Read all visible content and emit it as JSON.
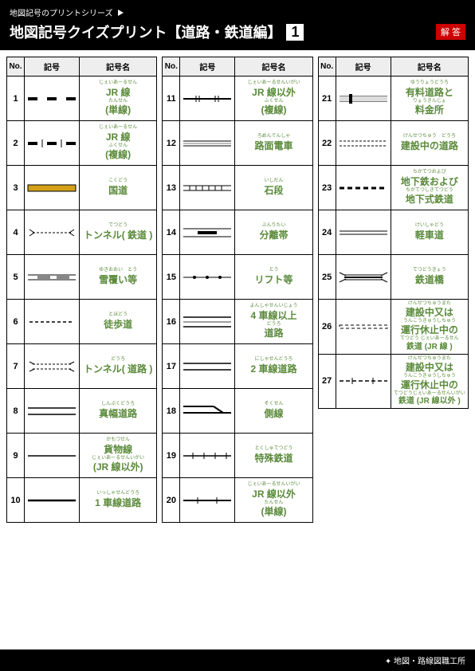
{
  "header": {
    "series": "地図記号のプリントシリーズ",
    "title": "地図記号クイズプリント【道路・鉄道編】",
    "number": "1",
    "answer_label": "解 答"
  },
  "columns": {
    "no": "No.",
    "symbol": "記号",
    "name": "記号名"
  },
  "footer": "地図・路線図職工所",
  "colors": {
    "accent": "#5a8a3a",
    "kokudo": "#d4a017"
  },
  "items": [
    {
      "no": 1,
      "svg": "jr1",
      "ruby1": "じぇいあーるせん",
      "main": "JR 線",
      "ruby2": "たんせん",
      "sub": "(単線)"
    },
    {
      "no": 2,
      "svg": "jr2",
      "ruby1": "じぇいあーるせん",
      "main": "JR 線",
      "ruby2": "ふくせん",
      "sub": "(複線)"
    },
    {
      "no": 3,
      "svg": "kokudo",
      "ruby1": "こくどう",
      "main": "国道"
    },
    {
      "no": 4,
      "svg": "tun-rail",
      "ruby1": "てつどう",
      "main": "トンネル",
      "sub": "( 鉄道 )"
    },
    {
      "no": 5,
      "svg": "yuki",
      "ruby1": "ゆきおおい　とう",
      "main": "雪覆い等"
    },
    {
      "no": 6,
      "svg": "toho",
      "ruby1": "とほどう",
      "main": "徒歩道"
    },
    {
      "no": 7,
      "svg": "tun-road",
      "ruby1": "どうろ",
      "main": "トンネル",
      "sub": "( 道路 )"
    },
    {
      "no": 8,
      "svg": "shin",
      "ruby1": "しんぷくどうろ",
      "main": "真幅道路"
    },
    {
      "no": 9,
      "svg": "kamotsu",
      "ruby1": "かもつせん",
      "main": "貨物線",
      "ruby2": "じぇいあーるせんいがい",
      "sub": "(JR 線以外)"
    },
    {
      "no": 10,
      "svg": "1lane",
      "ruby1": "いっしゃせんどうろ",
      "main": "1 車線道路"
    },
    {
      "no": 11,
      "svg": "jrx2",
      "ruby1": "じぇいあーるせんいがい",
      "main": "JR 線以外",
      "ruby2": "ふくせん",
      "sub": "(複線)"
    },
    {
      "no": 12,
      "svg": "romen",
      "ruby1": "ろめんでんしゃ",
      "main": "路面電車"
    },
    {
      "no": 13,
      "svg": "ishidan",
      "ruby1": "いしだん",
      "main": "石段"
    },
    {
      "no": 14,
      "svg": "bunri",
      "ruby1": "ぶんりたい",
      "main": "分離帯"
    },
    {
      "no": 15,
      "svg": "lift",
      "ruby1": "とう",
      "main": "リフト等"
    },
    {
      "no": 16,
      "svg": "4lane",
      "ruby1": "よんしゃせんいじょう",
      "main": "4 車線以上",
      "ruby2": "どうろ",
      "sub": "道路"
    },
    {
      "no": 17,
      "svg": "2lane",
      "ruby1": "にしゃせんどうろ",
      "main": "2 車線道路"
    },
    {
      "no": 18,
      "svg": "soku",
      "ruby1": "そくせん",
      "main": "側線"
    },
    {
      "no": 19,
      "svg": "toku",
      "ruby1": "とくしゅてつどう",
      "main": "特殊鉄道"
    },
    {
      "no": 20,
      "svg": "jrx1",
      "ruby1": "じぇいあーるせんいがい",
      "main": "JR 線以外",
      "ruby2": "たんせん",
      "sub": "(単線)"
    },
    {
      "no": 21,
      "svg": "yuryo",
      "ruby1": "ゆうりょうどうろ",
      "main": "有料道路と",
      "ruby2": "りょうきんじょ",
      "sub": "料金所"
    },
    {
      "no": 22,
      "svg": "kensetsu",
      "ruby1": "けんせつちゅう　どうろ",
      "main": "建設中の道路"
    },
    {
      "no": 23,
      "svg": "chika",
      "ruby1": "ちかてつおよび",
      "main": "地下鉄および",
      "ruby2": "ちかてつしきてつどう",
      "sub": "地下式鉄道"
    },
    {
      "no": 24,
      "svg": "keisha",
      "ruby1": "けいしゃどう",
      "main": "軽車道"
    },
    {
      "no": 25,
      "svg": "bridge",
      "ruby1": "てつどうきょう",
      "main": "鉄道橋"
    },
    {
      "no": 26,
      "svg": "ken-jr",
      "ruby1": "けんせつちゅうまた",
      "main": "建設中又は",
      "ruby2": "うんこうきゅうしちゅう",
      "sub": "運行休止中の",
      "ruby3": "てつどう じぇいあーるせん",
      "sub2": "鉄道 (JR 線 )"
    },
    {
      "no": 27,
      "svg": "ken-jrx",
      "ruby1": "けんせつちゅうまた",
      "main": "建設中又は",
      "ruby2": "うんこうきゅうしちゅう",
      "sub": "運行休止中の",
      "ruby3": "てつどうじぇいあーるせんいがい",
      "sub2": "鉄道 (JR 線以外 )"
    }
  ]
}
